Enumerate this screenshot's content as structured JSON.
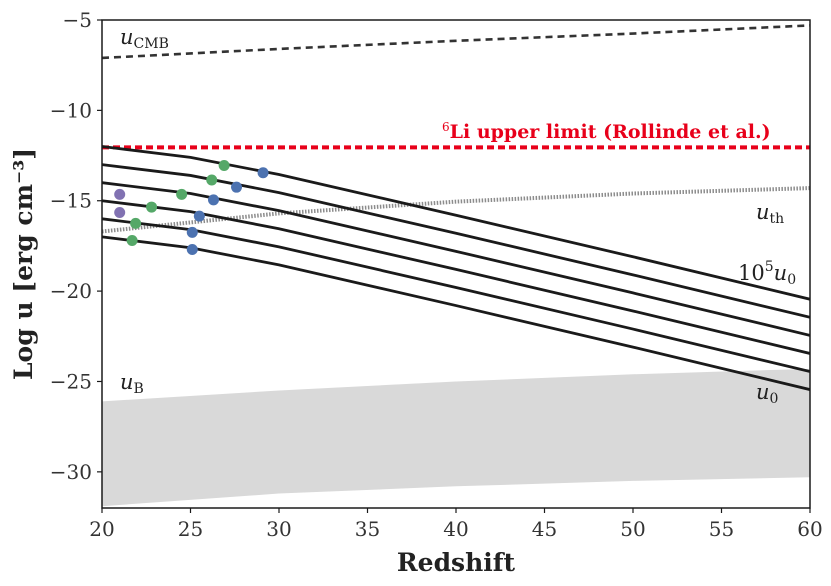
{
  "chart_data": {
    "type": "line",
    "xlabel": "Redshift",
    "ylabel": "Log u [erg cm⁻³]",
    "xlim": [
      20,
      60
    ],
    "ylim": [
      -32,
      -5
    ],
    "xticks": [
      20,
      25,
      30,
      35,
      40,
      45,
      50,
      55,
      60
    ],
    "yticks": [
      -5,
      -10,
      -15,
      -20,
      -25,
      -30
    ],
    "grid": false,
    "colors": {
      "u0_curves": "#1a1a1a",
      "cmb": "#333333",
      "li_limit": "#e8001a",
      "uth": "#8c8c8c",
      "uB_band": "#d9d9d9",
      "dot_blue": "#4c72b0",
      "dot_green": "#55a868",
      "dot_purple": "#8172b2"
    },
    "series": [
      {
        "style": "dashed",
        "color": "#333333",
        "x": [
          20,
          30,
          40,
          50,
          60
        ],
        "y": [
          -7.1,
          -6.6,
          -6.15,
          -5.75,
          -5.3
        ]
      },
      {
        "style": "dotted-thick",
        "color": "#e8001a",
        "x": [
          20,
          60
        ],
        "y": [
          -12.05,
          -12.05
        ]
      },
      {
        "style": "hatched",
        "color": "#8c8c8c",
        "x": [
          20,
          30,
          40,
          50,
          60
        ],
        "y": [
          -16.7,
          -15.7,
          -15.05,
          -14.6,
          -14.3
        ]
      },
      {
        "style": "solid",
        "x": [
          20,
          25,
          30,
          40,
          50,
          60
        ],
        "y": [
          -12.0,
          -12.6,
          -13.55,
          -15.8,
          -18.1,
          -20.45
        ]
      },
      {
        "style": "solid",
        "x": [
          20,
          25,
          30,
          40,
          50,
          60
        ],
        "y": [
          -13.0,
          -13.6,
          -14.55,
          -16.8,
          -19.1,
          -21.45
        ]
      },
      {
        "style": "solid",
        "x": [
          20,
          25,
          30,
          40,
          50,
          60
        ],
        "y": [
          -14.0,
          -14.6,
          -15.55,
          -17.8,
          -20.1,
          -22.45
        ]
      },
      {
        "style": "solid",
        "x": [
          20,
          25,
          30,
          40,
          50,
          60
        ],
        "y": [
          -15.0,
          -15.6,
          -16.55,
          -18.8,
          -21.1,
          -23.45
        ]
      },
      {
        "style": "solid",
        "x": [
          20,
          25,
          30,
          40,
          50,
          60
        ],
        "y": [
          -16.0,
          -16.6,
          -17.55,
          -19.8,
          -22.1,
          -24.45
        ]
      },
      {
        "style": "solid",
        "x": [
          20,
          25,
          30,
          40,
          50,
          60
        ],
        "y": [
          -17.0,
          -17.6,
          -18.55,
          -20.8,
          -23.1,
          -25.45
        ]
      }
    ],
    "band": {
      "x": [
        20,
        30,
        40,
        50,
        60
      ],
      "upper": [
        -26.1,
        -25.5,
        -25.0,
        -24.6,
        -24.3
      ],
      "lower": [
        -31.9,
        -31.2,
        -30.8,
        -30.5,
        -30.3
      ]
    },
    "points": [
      {
        "x": 26.9,
        "y": -13.05,
        "color": "green"
      },
      {
        "x": 29.1,
        "y": -13.45,
        "color": "blue"
      },
      {
        "x": 26.2,
        "y": -13.85,
        "color": "green"
      },
      {
        "x": 27.6,
        "y": -14.25,
        "color": "blue"
      },
      {
        "x": 24.5,
        "y": -14.65,
        "color": "green"
      },
      {
        "x": 26.3,
        "y": -14.95,
        "color": "blue"
      },
      {
        "x": 22.8,
        "y": -15.35,
        "color": "green"
      },
      {
        "x": 25.5,
        "y": -15.85,
        "color": "blue"
      },
      {
        "x": 21.9,
        "y": -16.25,
        "color": "green"
      },
      {
        "x": 25.1,
        "y": -16.75,
        "color": "blue"
      },
      {
        "x": 21.7,
        "y": -17.2,
        "color": "green"
      },
      {
        "x": 25.1,
        "y": -17.7,
        "color": "blue"
      },
      {
        "x": 21.0,
        "y": -14.65,
        "color": "purple"
      },
      {
        "x": 21.0,
        "y": -15.65,
        "color": "purple"
      }
    ],
    "annotations": {
      "cmb": "u",
      "cmb_sub": "CMB",
      "li_sup": "6",
      "li_text": "Li upper limit (Rollinde et al.)",
      "uth": "u",
      "uth_sub": "th",
      "top_curve_prefix": "10",
      "top_curve_exp": "5",
      "top_curve_u": "u",
      "top_curve_sub": "0",
      "bottom_curve": "u",
      "bottom_curve_sub": "0",
      "uB": "u",
      "uB_sub": "B"
    }
  }
}
